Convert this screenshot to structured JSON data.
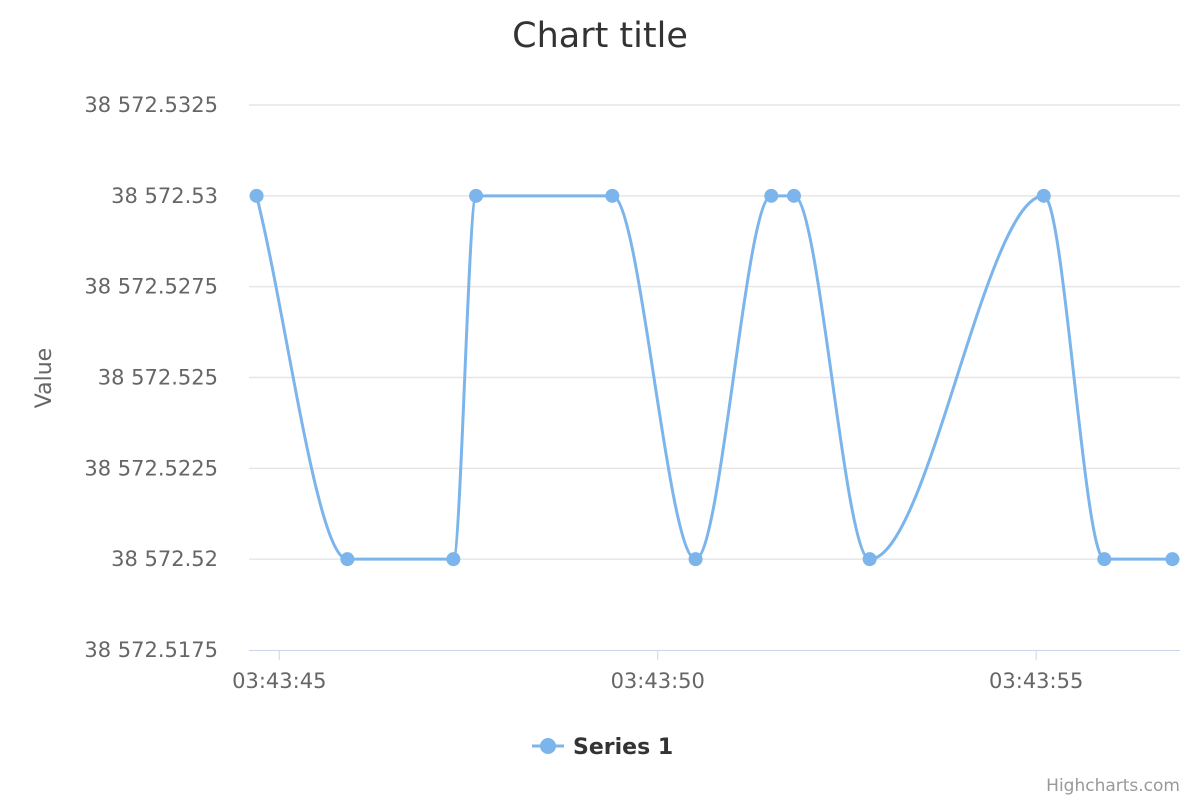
{
  "chart_data": {
    "type": "line",
    "title": "Chart title",
    "ylabel": "Value",
    "xlabel": "",
    "ylim": [
      38572.5175,
      38572.5325
    ],
    "yticks": [
      "38 572.5325",
      "38 572.53",
      "38 572.5275",
      "38 572.525",
      "38 572.5225",
      "38 572.52",
      "38 572.5175"
    ],
    "ytick_values": [
      38572.5325,
      38572.53,
      38572.5275,
      38572.525,
      38572.5225,
      38572.52,
      38572.5175
    ],
    "xticks": [
      "03:43:45",
      "03:43:50",
      "03:43:55"
    ],
    "xlim": [
      "03:43:44.6",
      "03:43:56.9"
    ],
    "grid": true,
    "legend_position": "bottom-center",
    "series": [
      {
        "name": "Series 1",
        "color": "#7cb5ec",
        "x": [
          "03:43:44.7",
          "03:43:45.9",
          "03:43:47.3",
          "03:43:47.6",
          "03:43:49.4",
          "03:43:50.5",
          "03:43:51.5",
          "03:43:51.8",
          "03:43:52.8",
          "03:43:55.1",
          "03:43:55.9",
          "03:43:56.8"
        ],
        "values": [
          38572.53,
          38572.52,
          38572.52,
          38572.53,
          38572.53,
          38572.52,
          38572.53,
          38572.53,
          38572.52,
          38572.53,
          38572.52,
          38572.52
        ]
      }
    ]
  },
  "credits": "Highcharts.com"
}
